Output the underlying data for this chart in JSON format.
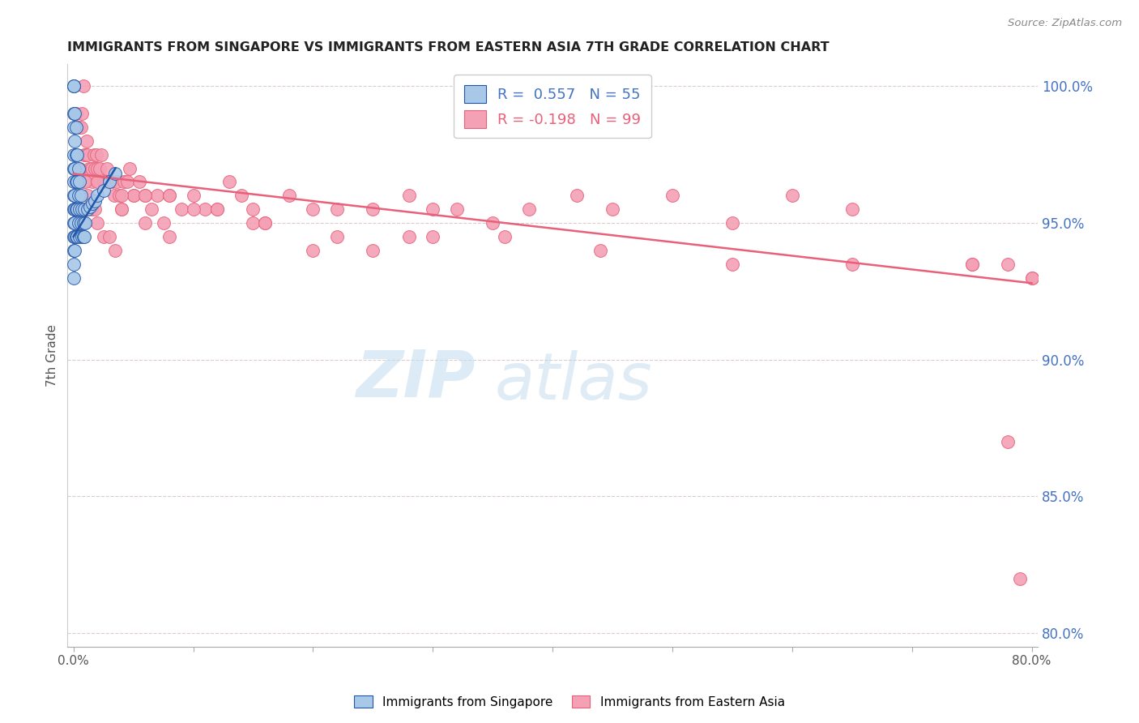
{
  "title": "IMMIGRANTS FROM SINGAPORE VS IMMIGRANTS FROM EASTERN ASIA 7TH GRADE CORRELATION CHART",
  "source": "Source: ZipAtlas.com",
  "ylabel": "7th Grade",
  "xlim": [
    -0.005,
    0.805
  ],
  "ylim": [
    0.795,
    1.008
  ],
  "singapore_R": 0.557,
  "singapore_N": 55,
  "eastern_asia_R": -0.198,
  "eastern_asia_N": 99,
  "singapore_color": "#a8c8e8",
  "eastern_asia_color": "#f4a0b5",
  "singapore_line_color": "#2255aa",
  "eastern_asia_line_color": "#e8607a",
  "watermark_zip": "ZIP",
  "watermark_atlas": "atlas",
  "sg_x": [
    0.0,
    0.0,
    0.0,
    0.0,
    0.0,
    0.0,
    0.0,
    0.0,
    0.0,
    0.0,
    0.0,
    0.0,
    0.0,
    0.0,
    0.0,
    0.001,
    0.001,
    0.001,
    0.001,
    0.001,
    0.001,
    0.001,
    0.001,
    0.002,
    0.002,
    0.002,
    0.002,
    0.002,
    0.003,
    0.003,
    0.003,
    0.003,
    0.004,
    0.004,
    0.004,
    0.005,
    0.005,
    0.005,
    0.006,
    0.006,
    0.007,
    0.007,
    0.008,
    0.008,
    0.009,
    0.009,
    0.01,
    0.012,
    0.014,
    0.016,
    0.018,
    0.02,
    0.025,
    0.03,
    0.035
  ],
  "sg_y": [
    1.0,
    1.0,
    1.0,
    0.99,
    0.985,
    0.975,
    0.97,
    0.965,
    0.96,
    0.955,
    0.95,
    0.945,
    0.94,
    0.935,
    0.93,
    0.99,
    0.98,
    0.97,
    0.96,
    0.955,
    0.95,
    0.945,
    0.94,
    0.985,
    0.975,
    0.965,
    0.955,
    0.945,
    0.975,
    0.965,
    0.955,
    0.945,
    0.97,
    0.96,
    0.95,
    0.965,
    0.955,
    0.945,
    0.96,
    0.95,
    0.955,
    0.945,
    0.95,
    0.945,
    0.955,
    0.945,
    0.95,
    0.955,
    0.956,
    0.957,
    0.958,
    0.96,
    0.962,
    0.965,
    0.968
  ],
  "ea_x": [
    0.002,
    0.004,
    0.006,
    0.007,
    0.008,
    0.009,
    0.01,
    0.011,
    0.012,
    0.013,
    0.015,
    0.016,
    0.017,
    0.018,
    0.019,
    0.02,
    0.021,
    0.022,
    0.023,
    0.025,
    0.027,
    0.028,
    0.03,
    0.032,
    0.034,
    0.036,
    0.038,
    0.04,
    0.042,
    0.045,
    0.047,
    0.05,
    0.055,
    0.06,
    0.065,
    0.07,
    0.075,
    0.08,
    0.09,
    0.1,
    0.11,
    0.12,
    0.13,
    0.14,
    0.15,
    0.16,
    0.18,
    0.2,
    0.22,
    0.25,
    0.28,
    0.3,
    0.32,
    0.35,
    0.38,
    0.42,
    0.45,
    0.5,
    0.55,
    0.6,
    0.65,
    0.75,
    0.78,
    0.005,
    0.008,
    0.01,
    0.012,
    0.015,
    0.018,
    0.02,
    0.025,
    0.03,
    0.035,
    0.04,
    0.05,
    0.06,
    0.08,
    0.1,
    0.15,
    0.2,
    0.25,
    0.3,
    0.02,
    0.04,
    0.06,
    0.08,
    0.12,
    0.16,
    0.22,
    0.28,
    0.36,
    0.44,
    0.55,
    0.65,
    0.75,
    0.78,
    0.79,
    0.8,
    0.8
  ],
  "ea_y": [
    0.99,
    0.985,
    0.985,
    0.99,
    1.0,
    0.975,
    0.975,
    0.98,
    0.975,
    0.97,
    0.97,
    0.965,
    0.975,
    0.97,
    0.975,
    0.97,
    0.965,
    0.97,
    0.975,
    0.965,
    0.965,
    0.97,
    0.965,
    0.965,
    0.96,
    0.965,
    0.96,
    0.955,
    0.965,
    0.965,
    0.97,
    0.96,
    0.965,
    0.96,
    0.955,
    0.96,
    0.95,
    0.96,
    0.955,
    0.96,
    0.955,
    0.955,
    0.965,
    0.96,
    0.955,
    0.95,
    0.96,
    0.955,
    0.955,
    0.955,
    0.96,
    0.955,
    0.955,
    0.95,
    0.955,
    0.96,
    0.955,
    0.96,
    0.95,
    0.96,
    0.955,
    0.935,
    0.935,
    0.97,
    0.965,
    0.965,
    0.96,
    0.955,
    0.955,
    0.95,
    0.945,
    0.945,
    0.94,
    0.955,
    0.96,
    0.95,
    0.945,
    0.955,
    0.95,
    0.94,
    0.94,
    0.945,
    0.965,
    0.96,
    0.96,
    0.96,
    0.955,
    0.95,
    0.945,
    0.945,
    0.945,
    0.94,
    0.935,
    0.935,
    0.935,
    0.87,
    0.82,
    0.93,
    0.93
  ],
  "ea_trend_x0": 0.0,
  "ea_trend_y0": 0.968,
  "ea_trend_x1": 0.8,
  "ea_trend_y1": 0.928,
  "sg_trend_x0": 0.0,
  "sg_trend_y0": 0.945,
  "sg_trend_x1": 0.035,
  "sg_trend_y1": 0.97
}
